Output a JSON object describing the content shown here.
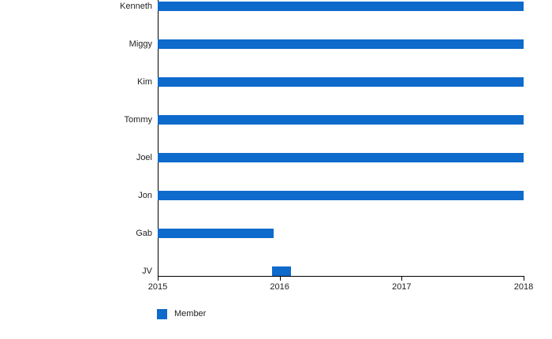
{
  "chart_data": {
    "type": "bar",
    "orientation": "horizontal",
    "title": "",
    "xlabel": "",
    "ylabel": "",
    "categories": [
      "Kenneth",
      "Miggy",
      "Kim",
      "Tommy",
      "Joel",
      "Jon",
      "Gab",
      "JV"
    ],
    "series": [
      {
        "name": "Member",
        "color": "#0e6acb",
        "ranges": [
          {
            "category": "Kenneth",
            "start": 2015.0,
            "end": 2018.0
          },
          {
            "category": "Miggy",
            "start": 2015.0,
            "end": 2018.0
          },
          {
            "category": "Kim",
            "start": 2015.0,
            "end": 2018.0
          },
          {
            "category": "Tommy",
            "start": 2015.0,
            "end": 2018.0
          },
          {
            "category": "Joel",
            "start": 2015.0,
            "end": 2018.0
          },
          {
            "category": "Jon",
            "start": 2015.0,
            "end": 2018.0
          },
          {
            "category": "Gab",
            "start": 2015.0,
            "end": 2015.95
          },
          {
            "category": "JV",
            "start": 2015.94,
            "end": 2016.09
          }
        ]
      }
    ],
    "xlim": [
      2015,
      2018
    ],
    "x_ticks": [
      "2015",
      "2016",
      "2017",
      "2018"
    ],
    "grid": false,
    "legend_position": "bottom-left",
    "legend_label": "Member",
    "axis_color": "#000000",
    "text_color": "#222222"
  }
}
